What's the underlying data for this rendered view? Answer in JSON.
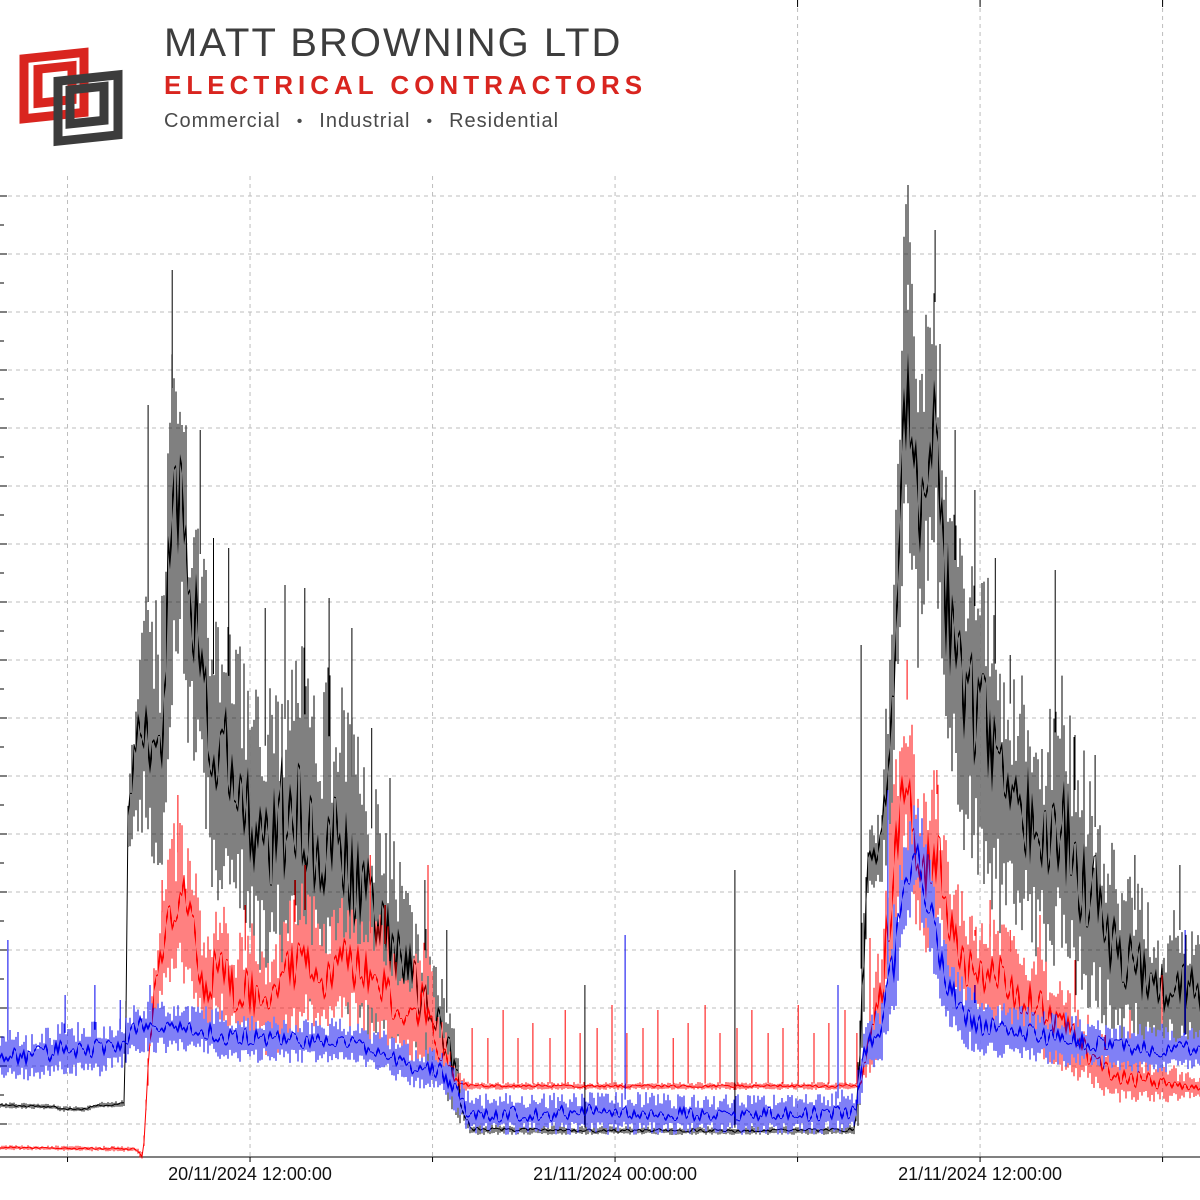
{
  "page": {
    "background": "#ffffff"
  },
  "logo": {
    "company": "MATT BROWNING LTD",
    "subtitle": "ELECTRICAL CONTRACTORS",
    "tagline_items": [
      "Commercial",
      "Industrial",
      "Residential"
    ],
    "tagline_separator": "•",
    "colors": {
      "red": "#d9251f",
      "gray": "#3d3d3d"
    }
  },
  "chart_data": {
    "type": "line",
    "title": "",
    "legend": null,
    "grid": {
      "style": "dashed",
      "color": "#bdbdbd"
    },
    "x_axis": {
      "unit": "datetime-hours-since-20/11/2024-00:00",
      "start_hours": 3.78,
      "end_hours": 43.23,
      "gridline_hours": [
        6,
        12,
        18,
        24,
        30,
        36,
        42
      ],
      "tick_labels": [
        {
          "hours": 12,
          "label": "20/11/2024 12:00:00"
        },
        {
          "hours": 24,
          "label": "21/11/2024 00:00:00"
        },
        {
          "hours": 36,
          "label": "21/11/2024 12:00:00"
        }
      ]
    },
    "y_axis": {
      "min": 0,
      "max": 100,
      "labels_visible": false,
      "grid_start": 3.4,
      "grid_step": 5.8,
      "grid_count": 17
    },
    "series": [
      {
        "name": "black",
        "color": "#000000",
        "seed": 101,
        "band": [
          [
            3.78,
            5.0,
            5.6
          ],
          [
            5.59,
            4.8,
            5.4
          ],
          [
            5.75,
            4.6,
            5.2
          ],
          [
            6.57,
            4.6,
            5.2
          ],
          [
            7.07,
            5.0,
            5.6
          ],
          [
            7.89,
            5.0,
            5.8
          ],
          [
            7.99,
            30,
            39
          ],
          [
            8.22,
            33,
            47
          ],
          [
            8.65,
            30,
            62
          ],
          [
            9.04,
            22,
            55
          ],
          [
            9.44,
            45,
            85
          ],
          [
            9.7,
            50,
            87
          ],
          [
            9.96,
            40,
            70
          ],
          [
            10.36,
            38,
            66
          ],
          [
            10.75,
            26,
            54
          ],
          [
            11.34,
            25,
            54
          ],
          [
            11.84,
            22,
            50
          ],
          [
            12.33,
            18,
            46
          ],
          [
            12.99,
            18,
            50
          ],
          [
            13.64,
            16,
            52
          ],
          [
            14.3,
            15,
            50
          ],
          [
            14.96,
            14,
            48
          ],
          [
            15.62,
            12,
            42
          ],
          [
            16.27,
            10,
            36
          ],
          [
            16.93,
            9,
            30
          ],
          [
            17.59,
            8,
            26
          ],
          [
            18.08,
            7,
            20
          ],
          [
            18.57,
            5,
            16
          ],
          [
            18.9,
            3,
            10
          ],
          [
            19.23,
            2.3,
            3.4
          ],
          [
            23.51,
            2.3,
            3.2
          ],
          [
            26.79,
            2.3,
            3.2
          ],
          [
            30.08,
            2.3,
            3.2
          ],
          [
            31.89,
            2.3,
            3.4
          ],
          [
            32.05,
            3,
            20
          ],
          [
            32.32,
            26,
            34
          ],
          [
            32.71,
            27,
            35
          ],
          [
            33.04,
            30,
            52
          ],
          [
            33.3,
            45,
            75
          ],
          [
            33.53,
            60,
            96
          ],
          [
            33.76,
            55,
            93
          ],
          [
            33.96,
            48,
            80
          ],
          [
            34.29,
            55,
            90
          ],
          [
            34.52,
            60,
            92
          ],
          [
            34.85,
            40,
            75
          ],
          [
            35.18,
            35,
            66
          ],
          [
            35.5,
            30,
            58
          ],
          [
            35.83,
            28,
            62
          ],
          [
            36.33,
            25,
            58
          ],
          [
            36.66,
            22,
            54
          ],
          [
            37.15,
            22,
            50
          ],
          [
            37.64,
            20,
            48
          ],
          [
            38.14,
            18,
            46
          ],
          [
            38.63,
            18,
            50
          ],
          [
            39.12,
            16,
            42
          ],
          [
            39.62,
            14,
            40
          ],
          [
            40.11,
            12,
            34
          ],
          [
            40.6,
            10,
            30
          ],
          [
            41.26,
            10,
            28
          ],
          [
            41.92,
            9,
            24
          ],
          [
            42.57,
            10,
            26
          ],
          [
            43.23,
            10,
            22
          ]
        ],
        "spikes": [
          [
            8.65,
            75.3
          ],
          [
            9.44,
            88.8
          ],
          [
            10.36,
            72.8
          ],
          [
            10.8,
            62
          ],
          [
            11.3,
            61
          ],
          [
            12.5,
            55
          ],
          [
            13.15,
            57.3
          ],
          [
            13.8,
            57
          ],
          [
            14.6,
            56
          ],
          [
            15.35,
            53
          ],
          [
            16.0,
            43
          ],
          [
            16.6,
            38
          ],
          [
            17.75,
            27.8
          ],
          [
            18.47,
            22.8
          ],
          [
            23.01,
            17.3
          ],
          [
            27.94,
            28.8
          ],
          [
            32.09,
            51.3
          ],
          [
            33.63,
            97.3
          ],
          [
            34.52,
            92.8
          ],
          [
            35.18,
            72.8
          ],
          [
            35.83,
            66.8
          ],
          [
            36.5,
            60
          ],
          [
            36.99,
            50.3
          ],
          [
            38.47,
            58.8
          ],
          [
            39.12,
            42.3
          ],
          [
            39.78,
            40.3
          ],
          [
            41.09,
            30.3
          ],
          [
            42.57,
            29.3
          ]
        ]
      },
      {
        "name": "red",
        "color": "#ff0000",
        "seed": 202,
        "band": [
          [
            3.78,
            0.8,
            1.3
          ],
          [
            8.22,
            0.6,
            1.2
          ],
          [
            8.48,
            -0.5,
            0.8
          ],
          [
            8.71,
            10,
            14
          ],
          [
            8.97,
            14,
            24
          ],
          [
            9.21,
            16,
            29
          ],
          [
            9.53,
            18,
            34
          ],
          [
            10.03,
            16,
            33
          ],
          [
            10.52,
            11,
            22
          ],
          [
            11.01,
            13,
            27
          ],
          [
            11.51,
            11,
            22
          ],
          [
            12.0,
            10,
            24
          ],
          [
            12.66,
            10,
            20
          ],
          [
            13.31,
            11,
            26
          ],
          [
            13.81,
            12,
            28
          ],
          [
            14.3,
            11,
            25
          ],
          [
            14.96,
            14,
            26
          ],
          [
            15.62,
            12,
            26
          ],
          [
            16.44,
            11,
            24
          ],
          [
            17.09,
            9,
            19
          ],
          [
            17.75,
            9,
            22
          ],
          [
            18.25,
            7,
            15
          ],
          [
            18.74,
            6.5,
            9
          ],
          [
            19.23,
            6.8,
            7.6
          ],
          [
            32.05,
            6.8,
            7.6
          ],
          [
            32.32,
            8,
            15
          ],
          [
            32.71,
            10,
            22
          ],
          [
            33.04,
            16,
            34
          ],
          [
            33.37,
            25,
            44
          ],
          [
            33.6,
            30,
            49.8
          ],
          [
            33.86,
            22,
            40
          ],
          [
            34.19,
            20,
            38
          ],
          [
            34.58,
            22,
            40
          ],
          [
            35.01,
            15,
            30
          ],
          [
            35.5,
            13,
            26
          ],
          [
            36.0,
            12,
            24
          ],
          [
            36.49,
            12,
            25
          ],
          [
            36.99,
            11,
            23
          ],
          [
            37.48,
            10,
            21
          ],
          [
            37.97,
            10,
            22
          ],
          [
            38.47,
            9,
            18
          ],
          [
            38.96,
            8,
            17
          ],
          [
            39.62,
            7,
            14
          ],
          [
            40.11,
            6,
            12
          ],
          [
            40.6,
            5.5,
            11
          ],
          [
            41.26,
            5.5,
            10
          ],
          [
            41.92,
            5.5,
            10
          ],
          [
            42.57,
            5.5,
            9
          ],
          [
            43.23,
            6,
            8.5
          ]
        ],
        "spikes": [
          [
            9.11,
            27.8
          ],
          [
            9.63,
            36.3
          ],
          [
            11.84,
            25.3
          ],
          [
            13.48,
            27.8
          ],
          [
            13.81,
            29.3
          ],
          [
            15.95,
            30.3
          ],
          [
            16.44,
            25.3
          ],
          [
            17.85,
            29.3
          ],
          [
            19.3,
            13
          ],
          [
            19.82,
            12
          ],
          [
            20.32,
            14.8
          ],
          [
            20.81,
            12
          ],
          [
            21.3,
            13.5
          ],
          [
            21.86,
            12
          ],
          [
            22.36,
            14.8
          ],
          [
            22.85,
            12.5
          ],
          [
            23.41,
            13
          ],
          [
            23.9,
            15.3
          ],
          [
            24.39,
            12.5
          ],
          [
            24.92,
            13
          ],
          [
            25.41,
            14.8
          ],
          [
            25.91,
            12
          ],
          [
            26.4,
            13.5
          ],
          [
            26.96,
            15.3
          ],
          [
            27.45,
            12.5
          ],
          [
            28.01,
            13
          ],
          [
            28.5,
            14.8
          ],
          [
            29.03,
            12.5
          ],
          [
            29.52,
            13
          ],
          [
            30.02,
            15.3
          ],
          [
            30.54,
            12.5
          ],
          [
            31.03,
            13.5
          ],
          [
            31.56,
            14.8
          ],
          [
            31.95,
            12.5
          ],
          [
            32.38,
            22
          ],
          [
            33.6,
            49.8
          ],
          [
            34.58,
            38.8
          ],
          [
            35.83,
            22.8
          ],
          [
            36.33,
            25.8
          ],
          [
            36.99,
            22.8
          ],
          [
            37.97,
            24.3
          ],
          [
            39.12,
            19.8
          ],
          [
            40.11,
            12.3
          ],
          [
            40.93,
            14.8
          ],
          [
            41.98,
            18.3
          ]
        ]
      },
      {
        "name": "blue",
        "color": "#0000ee",
        "seed": 303,
        "band": [
          [
            3.78,
            7.5,
            13
          ],
          [
            4.77,
            7.5,
            12.5
          ],
          [
            5.59,
            8,
            13.5
          ],
          [
            6.74,
            8,
            14
          ],
          [
            7.73,
            8.5,
            14
          ],
          [
            8.38,
            10.5,
            16
          ],
          [
            9.37,
            10.5,
            15.5
          ],
          [
            10.36,
            10.5,
            15.5
          ],
          [
            11.34,
            9.5,
            14.5
          ],
          [
            12.33,
            9.5,
            14.5
          ],
          [
            13.64,
            9.5,
            14
          ],
          [
            14.96,
            9.5,
            14
          ],
          [
            16.27,
            8.5,
            13
          ],
          [
            17.26,
            7,
            11.5
          ],
          [
            18.25,
            6.5,
            11
          ],
          [
            18.74,
            4.5,
            9
          ],
          [
            19.23,
            2.3,
            6.5
          ],
          [
            20.22,
            2.3,
            6.5
          ],
          [
            23.51,
            2.3,
            6.8
          ],
          [
            26.79,
            2.3,
            6.5
          ],
          [
            30.08,
            2.3,
            6.5
          ],
          [
            31.89,
            2.5,
            7
          ],
          [
            32.22,
            8,
            14
          ],
          [
            32.71,
            9,
            16
          ],
          [
            33.2,
            14,
            26
          ],
          [
            33.53,
            22,
            33
          ],
          [
            33.86,
            26,
            36.8
          ],
          [
            34.19,
            22,
            33
          ],
          [
            34.52,
            17,
            27
          ],
          [
            35.01,
            13,
            21
          ],
          [
            35.5,
            11,
            17.5
          ],
          [
            36.16,
            10,
            16
          ],
          [
            36.99,
            10,
            15.5
          ],
          [
            37.97,
            9.5,
            15
          ],
          [
            38.96,
            9,
            14.5
          ],
          [
            39.94,
            9,
            14
          ],
          [
            40.93,
            8.5,
            13.5
          ],
          [
            41.92,
            8.5,
            13.5
          ],
          [
            43.23,
            9,
            13
          ]
        ],
        "spikes": [
          [
            4.04,
            21.8
          ],
          [
            5.92,
            16.3
          ],
          [
            6.9,
            17.3
          ],
          [
            7.73,
            15.8
          ],
          [
            8.71,
            17.3
          ],
          [
            24.33,
            22.3
          ],
          [
            31.33,
            17.3
          ],
          [
            32.97,
            36.8
          ],
          [
            35.83,
            17.3
          ],
          [
            42.74,
            22.8
          ]
        ]
      }
    ]
  }
}
